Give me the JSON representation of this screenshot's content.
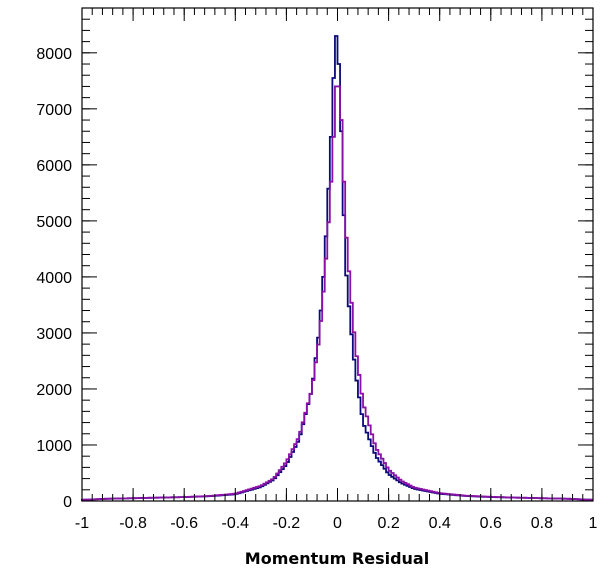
{
  "chart_data": {
    "type": "histogram",
    "xlabel": "Momentum Residual",
    "ylabel": "",
    "xlim": [
      -1,
      1
    ],
    "ylim": [
      0,
      8800
    ],
    "grid": false,
    "legend": "none",
    "x_ticks": [
      -1,
      -0.8,
      -0.6,
      -0.4,
      -0.2,
      0,
      0.2,
      0.4,
      0.6,
      0.8,
      1
    ],
    "x_tick_labels": [
      "-1",
      "-0.8",
      "-0.6",
      "-0.4",
      "-0.2",
      "0",
      "0.2",
      "0.4",
      "0.6",
      "0.8",
      "1"
    ],
    "y_ticks": [
      0,
      1000,
      2000,
      3000,
      4000,
      5000,
      6000,
      7000,
      8000
    ],
    "y_tick_labels": [
      "0",
      "1000",
      "2000",
      "3000",
      "4000",
      "5000",
      "6000",
      "7000",
      "8000"
    ],
    "bin_edges_range": [
      -1,
      1
    ],
    "bin_width": 0.01,
    "series": [
      {
        "color": "#0a0a7a",
        "peak_x": -0.005,
        "peak_y": 8300,
        "shape": "narrow-peak",
        "points": [
          [
            -1.0,
            20
          ],
          [
            -0.9,
            40
          ],
          [
            -0.8,
            50
          ],
          [
            -0.7,
            60
          ],
          [
            -0.6,
            70
          ],
          [
            -0.5,
            85
          ],
          [
            -0.4,
            120
          ],
          [
            -0.3,
            250
          ],
          [
            -0.25,
            380
          ],
          [
            -0.2,
            650
          ],
          [
            -0.15,
            1100
          ],
          [
            -0.1,
            2000
          ],
          [
            -0.07,
            3100
          ],
          [
            -0.05,
            4300
          ],
          [
            -0.03,
            6000
          ],
          [
            -0.02,
            7000
          ],
          [
            -0.01,
            8100
          ],
          [
            0.0,
            8300
          ],
          [
            0.01,
            7300
          ],
          [
            0.02,
            5900
          ],
          [
            0.03,
            4300
          ],
          [
            0.05,
            3200
          ],
          [
            0.07,
            2300
          ],
          [
            0.1,
            1400
          ],
          [
            0.15,
            800
          ],
          [
            0.2,
            480
          ],
          [
            0.25,
            320
          ],
          [
            0.3,
            220
          ],
          [
            0.4,
            130
          ],
          [
            0.5,
            90
          ],
          [
            0.6,
            70
          ],
          [
            0.7,
            60
          ],
          [
            0.8,
            50
          ],
          [
            0.9,
            40
          ],
          [
            1.0,
            20
          ]
        ]
      },
      {
        "color": "#8a10a8",
        "peak_x": 0.0,
        "peak_y": 7400,
        "shape": "broad-peak",
        "points": [
          [
            -1.0,
            20
          ],
          [
            -0.9,
            40
          ],
          [
            -0.8,
            50
          ],
          [
            -0.7,
            60
          ],
          [
            -0.6,
            70
          ],
          [
            -0.5,
            90
          ],
          [
            -0.4,
            130
          ],
          [
            -0.3,
            270
          ],
          [
            -0.25,
            400
          ],
          [
            -0.2,
            700
          ],
          [
            -0.15,
            1150
          ],
          [
            -0.1,
            2000
          ],
          [
            -0.07,
            2950
          ],
          [
            -0.05,
            4000
          ],
          [
            -0.03,
            5300
          ],
          [
            -0.02,
            6100
          ],
          [
            -0.01,
            6900
          ],
          [
            0.0,
            7400
          ],
          [
            0.01,
            7200
          ],
          [
            0.02,
            6400
          ],
          [
            0.03,
            5000
          ],
          [
            0.05,
            3800
          ],
          [
            0.07,
            2750
          ],
          [
            0.1,
            1750
          ],
          [
            0.15,
            950
          ],
          [
            0.2,
            560
          ],
          [
            0.25,
            360
          ],
          [
            0.3,
            240
          ],
          [
            0.4,
            140
          ],
          [
            0.5,
            95
          ],
          [
            0.6,
            75
          ],
          [
            0.7,
            60
          ],
          [
            0.8,
            50
          ],
          [
            0.9,
            40
          ],
          [
            1.0,
            20
          ]
        ]
      }
    ]
  }
}
